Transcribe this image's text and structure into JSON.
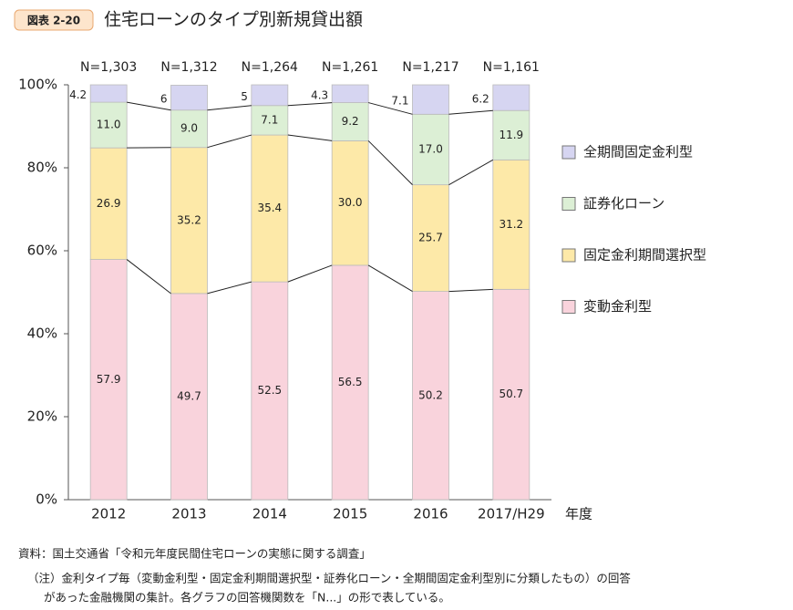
{
  "chart_data": {
    "type": "stacked_bar",
    "badge": "図表 2-20",
    "title": "住宅ローンのタイプ別新規貸出額",
    "categories": [
      "2012",
      "2013",
      "2014",
      "2015",
      "2016",
      "2017/H29"
    ],
    "x_label": "年度",
    "n_labels": [
      "N=1,303",
      "N=1,312",
      "N=1,264",
      "N=1,261",
      "N=1,217",
      "N=1,161"
    ],
    "series": [
      {
        "name": "変動金利型",
        "color": "#f9d3dc",
        "values": [
          57.9,
          49.7,
          52.5,
          56.5,
          50.2,
          50.7
        ]
      },
      {
        "name": "固定金利期間選択型",
        "color": "#fde9a8",
        "values": [
          26.9,
          35.2,
          35.4,
          30.0,
          25.7,
          31.2
        ],
        "value_labels": [
          "26.9",
          "35.2",
          "35.4",
          "30.0",
          "25.7",
          "31.2"
        ]
      },
      {
        "name": "証券化ローン",
        "color": "#dcefd5",
        "values": [
          11.0,
          9.0,
          7.1,
          9.2,
          17.0,
          11.9
        ],
        "value_labels": [
          "11.0",
          "9.0",
          "7.1",
          "9.2",
          "17.0",
          "11.9"
        ]
      },
      {
        "name": "全期間固定金利型",
        "color": "#d6d5f1",
        "values": [
          4.2,
          6.0,
          5.0,
          4.3,
          7.1,
          6.2
        ]
      }
    ],
    "ylim": [
      0,
      100
    ],
    "yticks": [
      {
        "value": 0,
        "label": "0%"
      },
      {
        "value": 20,
        "label": "20%"
      },
      {
        "value": 40,
        "label": "40%"
      },
      {
        "value": 60,
        "label": "60%"
      },
      {
        "value": 80,
        "label": "80%"
      },
      {
        "value": 100,
        "label": "100%"
      }
    ],
    "legend": "right",
    "source": "資料：国土交通省「令和元年度民間住宅ローンの実態に関する調査」",
    "notes": [
      "（注）金利タイプ毎（変動金利型・固定金利期間選択型・証券化ローン・全期間固定金利型別に分類したもの）の回答",
      "があった金融機関の集計。各グラフの回答機関数を「N...」の形で表している。"
    ]
  }
}
